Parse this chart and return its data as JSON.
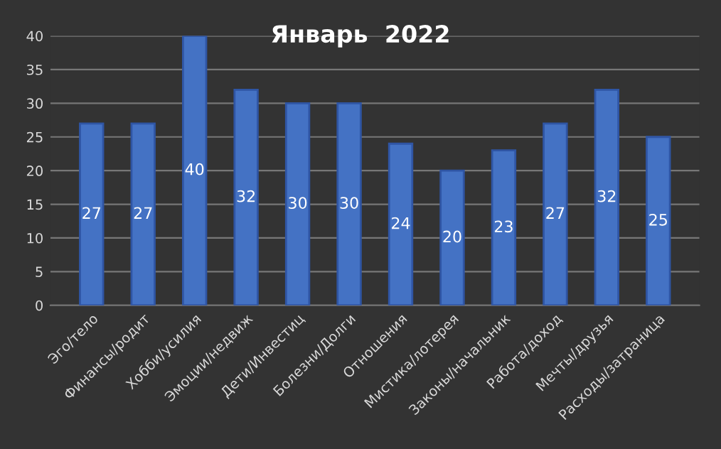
{
  "chart_data": {
    "type": "bar",
    "title": "Январь  2022",
    "categories": [
      "Эго/тело",
      "Финансы/родит",
      "Хобби/усилия",
      "Эмоции/недвиж",
      "Дети/Инвестиц",
      "Болезни/Долги",
      "Отношения",
      "Мистика/лотерея",
      "Законы/начальник",
      "Работа/доход",
      "Мечты/друзья",
      "Расходы/затраница"
    ],
    "values": [
      27,
      27,
      40,
      32,
      30,
      30,
      24,
      20,
      23,
      27,
      32,
      25
    ],
    "color": "#4472c4",
    "data_labels": true,
    "ylim": [
      0,
      40
    ],
    "yticks": [
      0,
      5,
      10,
      15,
      20,
      25,
      30,
      35,
      40
    ],
    "grid": "y"
  }
}
